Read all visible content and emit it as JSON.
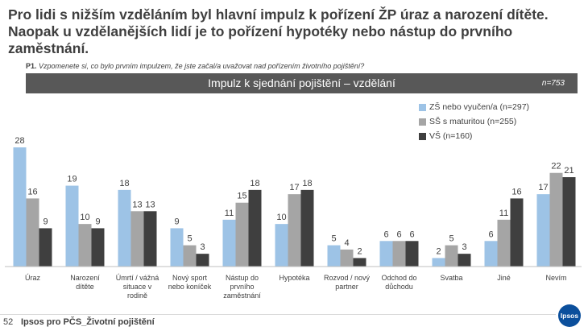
{
  "headline": "Pro lidi s nižším vzděláním byl hlavní impulz k pořízení ŽP úraz a narození dítěte. Naopak u vzdělanějších lidí je to pořízení hypotéky nebo nástup do prvního zaměstnání.",
  "question": {
    "num": "P1.",
    "text": "Vzpomenete si, co bylo prvním impulzem, že jste začal/a uvažovat nad pořízením životního pojištění?"
  },
  "banner": {
    "title": "Impulz k sjednání pojištění – vzdělání",
    "n": "n=753"
  },
  "footer": {
    "page_number": "52",
    "text": "Ipsos pro PČS_Životní pojištění",
    "logo_text": "Ipsos"
  },
  "colors": {
    "zs": "#9dc3e6",
    "ss": "#a5a5a5",
    "vs": "#3f3f3f",
    "banner": "#585858",
    "logo": "#0b4f9c"
  },
  "chart_data": {
    "type": "bar",
    "categories": [
      [
        "Úraz"
      ],
      [
        "Narození",
        "dítěte"
      ],
      [
        "Úmrtí / vážná",
        "situace v",
        "rodině"
      ],
      [
        "Nový sport",
        "nebo koníček"
      ],
      [
        "Nástup do",
        "prvního",
        "zaměstnání"
      ],
      [
        "Hypotéka"
      ],
      [
        "Rozvod / nový",
        "partner"
      ],
      [
        "Odchod do",
        "důchodu"
      ],
      [
        "Svatba"
      ],
      [
        "Jiné"
      ],
      [
        "Nevím"
      ]
    ],
    "series": [
      {
        "name": "ZŠ nebo vyučen/a (n=297)",
        "color": "#9dc3e6",
        "values": [
          28,
          19,
          18,
          9,
          11,
          10,
          5,
          6,
          2,
          6,
          17
        ]
      },
      {
        "name": "SŠ s maturitou (n=255)",
        "color": "#a5a5a5",
        "values": [
          16,
          10,
          13,
          5,
          15,
          17,
          4,
          6,
          5,
          11,
          22
        ]
      },
      {
        "name": "VŠ (n=160)",
        "color": "#3f3f3f",
        "values": [
          9,
          9,
          13,
          3,
          18,
          18,
          2,
          6,
          3,
          16,
          21
        ]
      }
    ],
    "ylim": [
      0,
      28
    ],
    "legend": "top-right",
    "grid": false,
    "data_labels": true
  }
}
